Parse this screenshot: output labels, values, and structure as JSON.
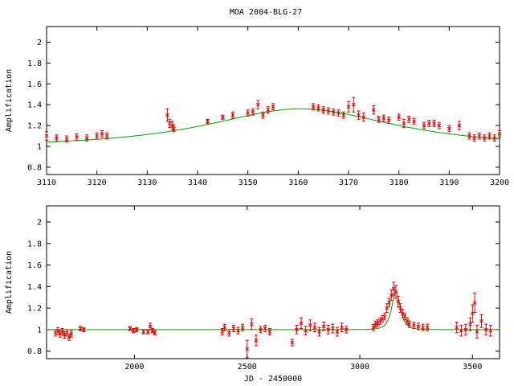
{
  "chart_data": [
    {
      "type": "scatter",
      "title": "MOA 2004-BLG-27",
      "xlabel": "",
      "ylabel": "Amplification",
      "xlim": [
        3110,
        3200
      ],
      "ylim": [
        0.73,
        2.15
      ],
      "xticks": [
        3110,
        3120,
        3130,
        3140,
        3150,
        3160,
        3170,
        3180,
        3190,
        3200
      ],
      "yticks": [
        0.8,
        1,
        1.2,
        1.4,
        1.6,
        1.8,
        2
      ],
      "grid": false,
      "model": {
        "color": "#00a000",
        "t0": 3160.5,
        "peak": 1.36,
        "baseline": 1.0
      },
      "points": {
        "color": "#e00000"
      },
      "series": [
        {
          "x": [
            3110,
            3112,
            3114,
            3116,
            3118,
            3120,
            3121,
            3122,
            3134,
            3134.5,
            3135,
            3135.3,
            3142,
            3145,
            3147,
            3150,
            3151,
            3152,
            3153,
            3154,
            3155,
            3163,
            3164,
            3165,
            3166,
            3167,
            3168,
            3169,
            3170,
            3171,
            3172,
            3173,
            3175,
            3176,
            3177,
            3178,
            3180,
            3181,
            3182,
            3183,
            3185,
            3186,
            3187,
            3188,
            3190,
            3192,
            3194,
            3195,
            3196,
            3197,
            3198,
            3199,
            3200
          ],
          "y": [
            1.1,
            1.08,
            1.07,
            1.09,
            1.08,
            1.1,
            1.12,
            1.1,
            1.3,
            1.22,
            1.2,
            1.17,
            1.24,
            1.28,
            1.3,
            1.32,
            1.33,
            1.4,
            1.3,
            1.35,
            1.38,
            1.38,
            1.37,
            1.35,
            1.34,
            1.33,
            1.32,
            1.3,
            1.38,
            1.4,
            1.3,
            1.28,
            1.35,
            1.26,
            1.27,
            1.25,
            1.28,
            1.22,
            1.26,
            1.24,
            1.2,
            1.22,
            1.22,
            1.2,
            1.17,
            1.2,
            1.1,
            1.08,
            1.1,
            1.08,
            1.1,
            1.08,
            1.12
          ],
          "err": [
            0.04,
            0.03,
            0.03,
            0.03,
            0.03,
            0.03,
            0.03,
            0.03,
            0.06,
            0.04,
            0.04,
            0.03,
            0.02,
            0.02,
            0.03,
            0.03,
            0.03,
            0.04,
            0.03,
            0.03,
            0.03,
            0.03,
            0.03,
            0.03,
            0.03,
            0.03,
            0.03,
            0.03,
            0.05,
            0.07,
            0.04,
            0.04,
            0.04,
            0.03,
            0.03,
            0.03,
            0.03,
            0.04,
            0.03,
            0.03,
            0.03,
            0.03,
            0.03,
            0.03,
            0.03,
            0.04,
            0.03,
            0.03,
            0.03,
            0.03,
            0.03,
            0.03,
            0.03
          ]
        }
      ]
    },
    {
      "type": "scatter",
      "title": "",
      "xlabel": "JD - 2450000",
      "ylabel": "Amplification",
      "xlim": [
        1610,
        3620
      ],
      "ylim": [
        0.73,
        2.15
      ],
      "xticks": [
        2000,
        2500,
        3000,
        3500
      ],
      "yticks": [
        0.8,
        1,
        1.2,
        1.4,
        1.6,
        1.8,
        2
      ],
      "grid": false,
      "model": {
        "color": "#00a000",
        "t0": 3160.5,
        "peak": 1.36,
        "baseline": 1.0
      },
      "points": {
        "color": "#e00000"
      },
      "series": [
        {
          "x": [
            1650,
            1660,
            1670,
            1680,
            1690,
            1700,
            1710,
            1720,
            1760,
            1775,
            1980,
            1995,
            2010,
            2040,
            2060,
            2070,
            2080,
            2090,
            2390,
            2400,
            2420,
            2440,
            2460,
            2480,
            2500,
            2520,
            2540,
            2560,
            2580,
            2600,
            2700,
            2720,
            2740,
            2760,
            2780,
            2800,
            2820,
            2840,
            2860,
            2880,
            2900,
            2920,
            2940,
            3060,
            3070,
            3080,
            3090,
            3100,
            3110,
            3120,
            3130,
            3140,
            3150,
            3160,
            3170,
            3180,
            3190,
            3200,
            3210,
            3220,
            3240,
            3260,
            3280,
            3300,
            3430,
            3450,
            3470,
            3490,
            3500,
            3510,
            3520,
            3540,
            3560,
            3580
          ],
          "y": [
            0.97,
            0.99,
            0.96,
            0.98,
            0.95,
            0.97,
            0.93,
            0.96,
            1.01,
            1.0,
            1.01,
            0.99,
            1.0,
            0.98,
            0.98,
            1.03,
            0.99,
            0.97,
            0.98,
            1.02,
            0.97,
            1.01,
            0.99,
            1.02,
            0.82,
            1.05,
            0.9,
            1.0,
            1.01,
            0.98,
            0.88,
            1.0,
            1.06,
            0.99,
            1.04,
            1.02,
            0.98,
            1.03,
            1.0,
            1.01,
            0.98,
            1.02,
            1.0,
            1.02,
            1.05,
            1.06,
            1.08,
            1.1,
            1.12,
            1.2,
            1.25,
            1.32,
            1.38,
            1.35,
            1.26,
            1.2,
            1.15,
            1.12,
            1.08,
            1.05,
            1.04,
            1.03,
            1.02,
            1.02,
            1.02,
            0.99,
            1.0,
            1.05,
            1.15,
            1.25,
            0.98,
            1.08,
            1.0,
            0.99
          ],
          "err": [
            0.03,
            0.03,
            0.03,
            0.03,
            0.03,
            0.03,
            0.03,
            0.03,
            0.02,
            0.02,
            0.02,
            0.02,
            0.02,
            0.02,
            0.02,
            0.03,
            0.02,
            0.02,
            0.03,
            0.03,
            0.03,
            0.03,
            0.03,
            0.03,
            0.08,
            0.05,
            0.05,
            0.03,
            0.03,
            0.03,
            0.03,
            0.04,
            0.05,
            0.04,
            0.05,
            0.04,
            0.04,
            0.04,
            0.04,
            0.04,
            0.04,
            0.04,
            0.03,
            0.03,
            0.03,
            0.03,
            0.03,
            0.03,
            0.03,
            0.04,
            0.04,
            0.05,
            0.06,
            0.06,
            0.05,
            0.04,
            0.04,
            0.03,
            0.03,
            0.03,
            0.03,
            0.03,
            0.03,
            0.03,
            0.05,
            0.05,
            0.05,
            0.06,
            0.08,
            0.09,
            0.06,
            0.06,
            0.05,
            0.05
          ]
        }
      ]
    }
  ]
}
